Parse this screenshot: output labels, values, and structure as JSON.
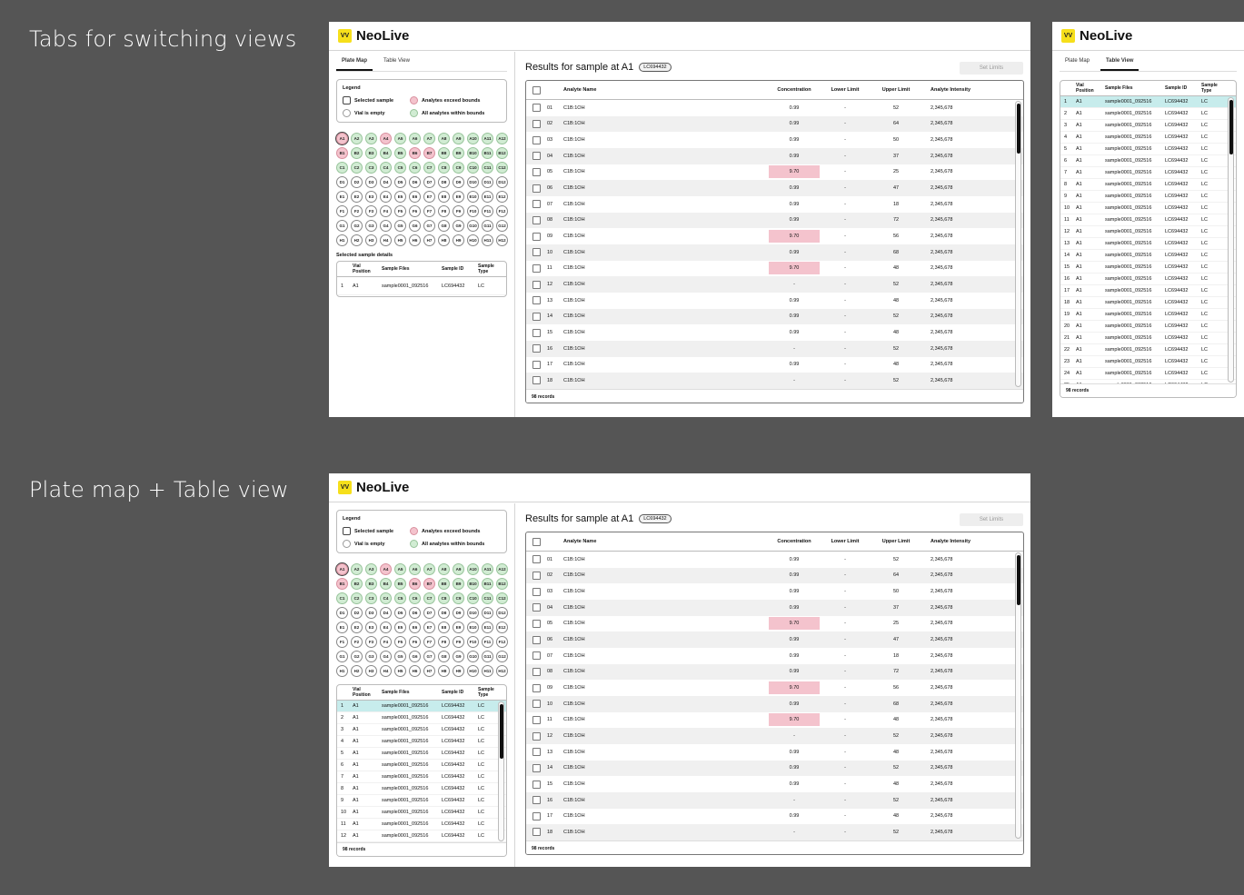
{
  "headings": {
    "top": "Tabs for switching views",
    "bottom": "Plate map + Table view"
  },
  "brand": "NeoLive",
  "logo_text": "VV",
  "tabs": [
    "Plate Map",
    "Table View"
  ],
  "legend": {
    "title": "Legend",
    "items": [
      "Selected sample",
      "Analytes exceed bounds",
      "Vial is empty",
      "All analytes within bounds"
    ]
  },
  "plate": {
    "rows": [
      "A",
      "B",
      "C",
      "D",
      "E",
      "F",
      "G",
      "H"
    ],
    "cols": 12,
    "selected": "A1",
    "exceed": [
      "A1",
      "A4",
      "B1",
      "B6",
      "B7"
    ],
    "within": [
      "A2",
      "A3",
      "A5",
      "A6",
      "A7",
      "A8",
      "A9",
      "A10",
      "A11",
      "A12",
      "B2",
      "B3",
      "B4",
      "B5",
      "B8",
      "B9",
      "B10",
      "B11",
      "B12",
      "C1",
      "C2",
      "C3",
      "C4",
      "C5",
      "C6",
      "C7",
      "C8",
      "C9",
      "C10",
      "C11",
      "C12"
    ]
  },
  "selected_details": {
    "title": "Selected sample details",
    "headers": [
      "Vial Position",
      "Sample Files",
      "Sample ID",
      "Sample Type"
    ],
    "row": [
      "1",
      "A1",
      "sample0001_092516",
      "LC694432",
      "LC"
    ]
  },
  "sample_table": {
    "headers": [
      "Vial Position",
      "Sample Files",
      "Sample ID",
      "Sample Type"
    ],
    "vial": "A1",
    "file": "sample0001_092516",
    "id": "LC694432",
    "type": "LC",
    "records": "98 records"
  },
  "results": {
    "title": "Results for sample at A1",
    "badge": "LC694432",
    "set_limits": "Set Limits",
    "headers": [
      "Analyte Name",
      "Concentration",
      "Lower Limit",
      "Upper Limit",
      "Analyte Intensity"
    ],
    "rows": [
      {
        "n": "01",
        "name": "C1B:1OH",
        "conc": "0.99",
        "low": "-",
        "up": "52",
        "int": "2,345,678",
        "hi": false
      },
      {
        "n": "02",
        "name": "C1B:1OH",
        "conc": "0.99",
        "low": "-",
        "up": "64",
        "int": "2,345,678",
        "hi": false
      },
      {
        "n": "03",
        "name": "C1B:1OH",
        "conc": "0.99",
        "low": "-",
        "up": "50",
        "int": "2,345,678",
        "hi": false
      },
      {
        "n": "04",
        "name": "C1B:1OH",
        "conc": "0.99",
        "low": "-",
        "up": "37",
        "int": "2,345,678",
        "hi": false
      },
      {
        "n": "05",
        "name": "C1B:1OH",
        "conc": "9.70",
        "low": "-",
        "up": "25",
        "int": "2,345,678",
        "hi": true
      },
      {
        "n": "06",
        "name": "C1B:1OH",
        "conc": "0.99",
        "low": "-",
        "up": "47",
        "int": "2,345,678",
        "hi": false
      },
      {
        "n": "07",
        "name": "C1B:1OH",
        "conc": "0.99",
        "low": "-",
        "up": "18",
        "int": "2,345,678",
        "hi": false
      },
      {
        "n": "08",
        "name": "C1B:1OH",
        "conc": "0.99",
        "low": "-",
        "up": "72",
        "int": "2,345,678",
        "hi": false
      },
      {
        "n": "09",
        "name": "C1B:1OH",
        "conc": "9.70",
        "low": "-",
        "up": "56",
        "int": "2,345,678",
        "hi": true
      },
      {
        "n": "10",
        "name": "C1B:1OH",
        "conc": "0.99",
        "low": "-",
        "up": "68",
        "int": "2,345,678",
        "hi": false
      },
      {
        "n": "11",
        "name": "C1B:1OH",
        "conc": "9.70",
        "low": "-",
        "up": "48",
        "int": "2,345,678",
        "hi": true
      },
      {
        "n": "12",
        "name": "C1B:1OH",
        "conc": "-",
        "low": "-",
        "up": "52",
        "int": "2,345,678",
        "hi": false
      },
      {
        "n": "13",
        "name": "C1B:1OH",
        "conc": "0.99",
        "low": "-",
        "up": "48",
        "int": "2,345,678",
        "hi": false
      },
      {
        "n": "14",
        "name": "C1B:1OH",
        "conc": "0.99",
        "low": "-",
        "up": "52",
        "int": "2,345,678",
        "hi": false
      },
      {
        "n": "15",
        "name": "C1B:1OH",
        "conc": "0.99",
        "low": "-",
        "up": "48",
        "int": "2,345,678",
        "hi": false
      },
      {
        "n": "16",
        "name": "C1B:1OH",
        "conc": "-",
        "low": "-",
        "up": "52",
        "int": "2,345,678",
        "hi": false
      },
      {
        "n": "17",
        "name": "C1B:1OH",
        "conc": "0.99",
        "low": "-",
        "up": "48",
        "int": "2,345,678",
        "hi": false
      },
      {
        "n": "18",
        "name": "C1B:1OH",
        "conc": "-",
        "low": "-",
        "up": "52",
        "int": "2,345,678",
        "hi": false
      }
    ],
    "records": "98 records"
  },
  "colors": {
    "accent": "#f6df1b",
    "exceed": "#f4c3cd",
    "within": "#d1ecd3",
    "highlight_row": "#c7ecec",
    "background": "#555555"
  }
}
